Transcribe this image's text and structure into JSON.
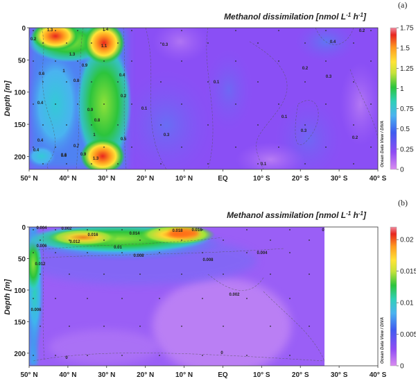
{
  "figure_tags": [
    "(a)",
    "(b)"
  ],
  "chart_data": [
    {
      "type": "heatmap",
      "panel": "(a)",
      "title_main": "Methanol dissimilation [nmol L",
      "title_unit": "-1",
      "title_mid": " h",
      "title_unit2": "-1",
      "title_end": "]",
      "ylabel": "Depth [m]",
      "xlabel": "",
      "x_ticks": [
        "50° N",
        "40° N",
        "30° N",
        "20° N",
        "10° N",
        "EQ",
        "10° S",
        "20° S",
        "30° S",
        "40° S"
      ],
      "x_values": [
        50,
        40,
        30,
        20,
        10,
        0,
        -10,
        -20,
        -30,
        -40
      ],
      "y_ticks": [
        "0",
        "50",
        "100",
        "150",
        "200"
      ],
      "y_values": [
        0,
        50,
        100,
        150,
        200
      ],
      "xlim": [
        50,
        -40
      ],
      "ylim": [
        0,
        220
      ],
      "colorbar": {
        "min": 0,
        "max": 1.75,
        "ticks": [
          "1.75",
          "1.5",
          "1.25",
          "1",
          "0.75",
          "0.5",
          "0.25",
          "0"
        ]
      },
      "credit": "Ocean Data View / DIVA",
      "contour_labels": [
        "0.2",
        "1.3",
        "1.4",
        "1.3",
        "1.1",
        "0.9",
        "1",
        "0.8",
        "0.6",
        "0.4",
        "0.4",
        "0.6",
        "0.7",
        "0.9",
        "1",
        "1.3",
        "0.4",
        "0.2",
        "0.3",
        "0.1",
        "0.5",
        "0.3",
        "0.1",
        "0.1",
        "0.1",
        "0.2",
        "0.4",
        "0.3",
        "0.3",
        "0.2",
        "0.2",
        "0.6",
        "0.8",
        "0.4",
        "0.9"
      ]
    },
    {
      "type": "heatmap",
      "panel": "(b)",
      "title_main": "Methanol assimilation [nmol L",
      "title_unit": "-1",
      "title_mid": " h",
      "title_unit2": "-1",
      "title_end": "]",
      "ylabel": "Depth [m]",
      "xlabel": "",
      "x_ticks": [
        "50° N",
        "40° N",
        "30° N",
        "20° N",
        "10° N",
        "EQ",
        "10° S",
        "20° S",
        "30° S",
        "40° S"
      ],
      "x_values": [
        50,
        40,
        30,
        20,
        10,
        0,
        -10,
        -20,
        -30,
        -40
      ],
      "y_ticks": [
        "0",
        "50",
        "100",
        "150",
        "200"
      ],
      "y_values": [
        0,
        50,
        100,
        150,
        200
      ],
      "xlim": [
        50,
        -40
      ],
      "ylim": [
        0,
        220
      ],
      "colorbar": {
        "min": 0,
        "max": 0.022,
        "ticks": [
          "0.02",
          "0.015",
          "0.01",
          "0.005",
          "0"
        ]
      },
      "credit": "Ocean Data View / DIVA",
      "contour_labels": [
        "0.004",
        "0.002",
        "0.016",
        "0.014",
        "0.018",
        "0.016",
        "0.012",
        "0.01",
        "0.008",
        "0.006",
        "0.008",
        "0.004",
        "0.012",
        "0.002",
        "0.006",
        "0",
        "0",
        "0"
      ]
    }
  ]
}
